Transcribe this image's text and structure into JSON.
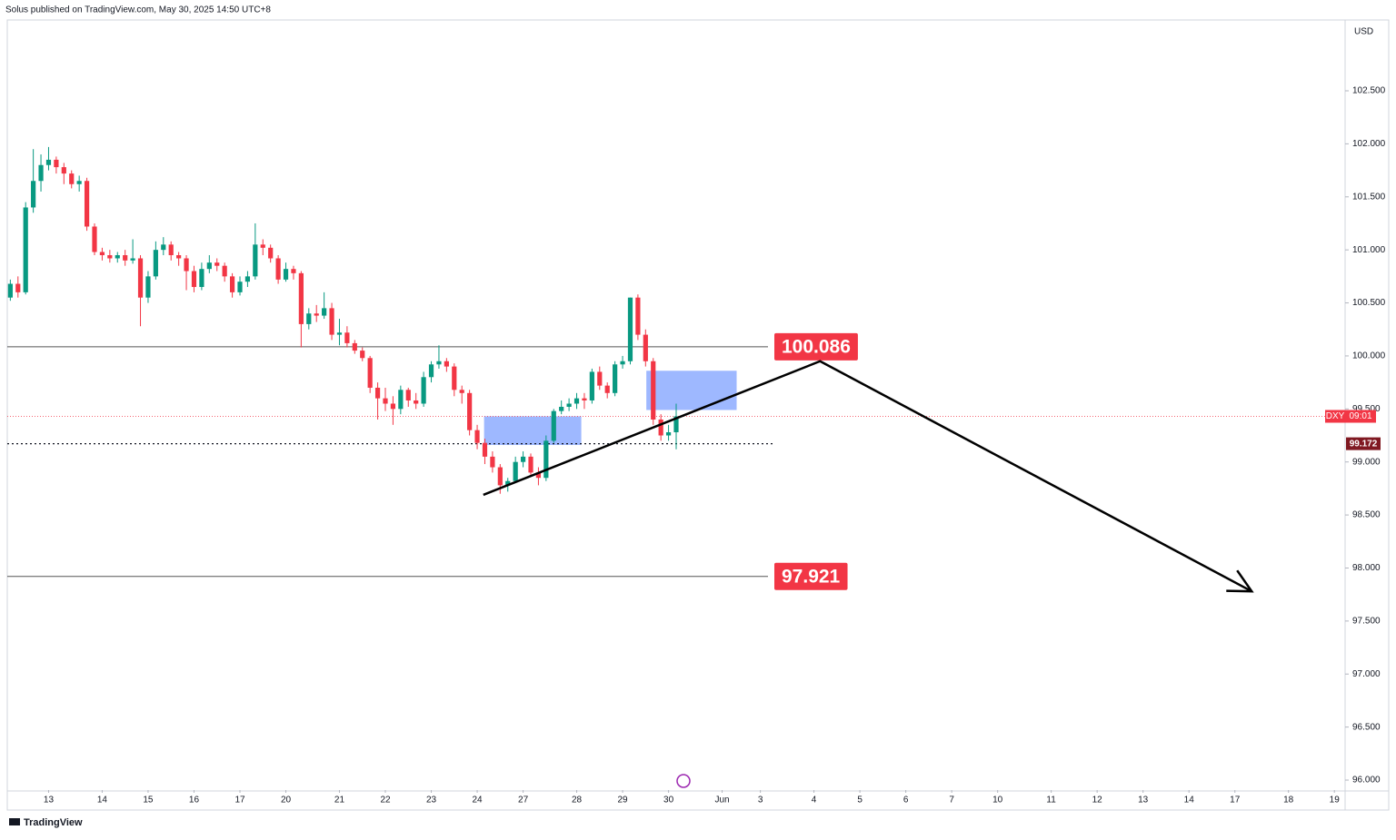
{
  "header": "Solus published on TradingView.com, May 30, 2025 14:50 UTC+8",
  "footer": "TradingView",
  "chart_data": {
    "type": "candlestick",
    "currency": "USD",
    "symbol": "DXY",
    "countdown": "09:01",
    "up_color": "#089981",
    "down_color": "#f23645",
    "candles": [
      [
        100.55,
        100.72,
        100.52,
        100.68
      ],
      [
        100.68,
        100.75,
        100.55,
        100.6
      ],
      [
        100.6,
        101.45,
        100.58,
        101.4
      ],
      [
        101.4,
        101.95,
        101.35,
        101.65
      ],
      [
        101.65,
        101.9,
        101.55,
        101.8
      ],
      [
        101.8,
        101.97,
        101.75,
        101.85
      ],
      [
        101.85,
        101.88,
        101.72,
        101.78
      ],
      [
        101.78,
        101.82,
        101.62,
        101.72
      ],
      [
        101.72,
        101.75,
        101.58,
        101.62
      ],
      [
        101.62,
        101.7,
        101.55,
        101.65
      ],
      [
        101.65,
        101.68,
        101.18,
        101.22
      ],
      [
        101.22,
        101.25,
        100.95,
        100.98
      ],
      [
        100.98,
        101.02,
        100.9,
        100.95
      ],
      [
        100.95,
        101.0,
        100.88,
        100.92
      ],
      [
        100.92,
        100.98,
        100.88,
        100.95
      ],
      [
        100.95,
        101.0,
        100.85,
        100.9
      ],
      [
        100.9,
        101.1,
        100.87,
        100.92
      ],
      [
        100.92,
        100.95,
        100.28,
        100.55
      ],
      [
        100.55,
        100.8,
        100.5,
        100.75
      ],
      [
        100.75,
        101.08,
        100.72,
        101.0
      ],
      [
        101.0,
        101.12,
        100.95,
        101.05
      ],
      [
        101.05,
        101.08,
        100.9,
        100.95
      ],
      [
        100.95,
        100.98,
        100.85,
        100.92
      ],
      [
        100.92,
        100.95,
        100.62,
        100.8
      ],
      [
        100.8,
        100.85,
        100.6,
        100.65
      ],
      [
        100.65,
        100.88,
        100.62,
        100.82
      ],
      [
        100.82,
        100.95,
        100.78,
        100.88
      ],
      [
        100.88,
        100.92,
        100.8,
        100.85
      ],
      [
        100.85,
        100.88,
        100.7,
        100.75
      ],
      [
        100.75,
        100.78,
        100.55,
        100.6
      ],
      [
        100.6,
        100.75,
        100.57,
        100.7
      ],
      [
        100.7,
        100.8,
        100.65,
        100.75
      ],
      [
        100.75,
        101.25,
        100.72,
        101.05
      ],
      [
        101.05,
        101.1,
        100.95,
        101.02
      ],
      [
        101.02,
        101.05,
        100.88,
        100.92
      ],
      [
        100.92,
        100.95,
        100.68,
        100.72
      ],
      [
        100.72,
        100.88,
        100.7,
        100.82
      ],
      [
        100.82,
        100.85,
        100.72,
        100.78
      ],
      [
        100.78,
        100.8,
        100.08,
        100.3
      ],
      [
        100.3,
        100.45,
        100.25,
        100.4
      ],
      [
        100.4,
        100.48,
        100.32,
        100.38
      ],
      [
        100.38,
        100.6,
        100.35,
        100.45
      ],
      [
        100.45,
        100.5,
        100.15,
        100.2
      ],
      [
        100.2,
        100.35,
        100.1,
        100.22
      ],
      [
        100.22,
        100.28,
        100.08,
        100.12
      ],
      [
        100.12,
        100.15,
        100.02,
        100.05
      ],
      [
        100.05,
        100.08,
        99.95,
        99.98
      ],
      [
        99.98,
        100.0,
        99.65,
        99.7
      ],
      [
        99.7,
        99.75,
        99.4,
        99.6
      ],
      [
        99.6,
        99.7,
        99.48,
        99.55
      ],
      [
        99.55,
        99.62,
        99.35,
        99.5
      ],
      [
        99.5,
        99.72,
        99.45,
        99.68
      ],
      [
        99.68,
        99.7,
        99.52,
        99.58
      ],
      [
        99.58,
        99.65,
        99.5,
        99.55
      ],
      [
        99.55,
        99.85,
        99.52,
        99.8
      ],
      [
        99.8,
        99.95,
        99.75,
        99.92
      ],
      [
        99.92,
        100.1,
        99.88,
        99.95
      ],
      [
        99.95,
        99.98,
        99.85,
        99.9
      ],
      [
        99.9,
        99.93,
        99.62,
        99.68
      ],
      [
        99.68,
        99.72,
        99.55,
        99.65
      ],
      [
        99.65,
        99.68,
        99.25,
        99.3
      ],
      [
        99.3,
        99.35,
        99.12,
        99.18
      ],
      [
        99.18,
        99.22,
        98.98,
        99.05
      ],
      [
        99.05,
        99.1,
        98.9,
        98.95
      ],
      [
        98.95,
        98.98,
        98.7,
        98.78
      ],
      [
        98.78,
        98.85,
        98.72,
        98.82
      ],
      [
        98.82,
        99.05,
        98.8,
        99.0
      ],
      [
        99.0,
        99.1,
        98.95,
        99.05
      ],
      [
        99.05,
        99.08,
        98.88,
        98.9
      ],
      [
        98.9,
        98.95,
        98.78,
        98.85
      ],
      [
        98.85,
        99.25,
        98.82,
        99.2
      ],
      [
        99.2,
        99.5,
        99.18,
        99.48
      ],
      [
        99.48,
        99.58,
        99.45,
        99.52
      ],
      [
        99.52,
        99.6,
        99.48,
        99.55
      ],
      [
        99.55,
        99.65,
        99.5,
        99.6
      ],
      [
        99.6,
        99.65,
        99.5,
        99.58
      ],
      [
        99.58,
        99.88,
        99.55,
        99.85
      ],
      [
        99.85,
        99.9,
        99.68,
        99.72
      ],
      [
        99.72,
        99.75,
        99.6,
        99.65
      ],
      [
        99.65,
        99.95,
        99.62,
        99.92
      ],
      [
        99.92,
        100.0,
        99.88,
        99.95
      ],
      [
        99.95,
        100.55,
        99.92,
        100.55
      ],
      [
        100.55,
        100.58,
        100.15,
        100.2
      ],
      [
        100.2,
        100.25,
        99.9,
        99.95
      ],
      [
        99.95,
        99.98,
        99.35,
        99.4
      ],
      [
        99.4,
        99.45,
        99.2,
        99.25
      ],
      [
        99.25,
        99.35,
        99.2,
        99.28
      ],
      [
        99.28,
        99.55,
        99.12,
        99.43
      ]
    ],
    "xlim": [
      -0.4,
      174.4
    ],
    "xticks": [
      {
        "value": 5,
        "label": "13"
      },
      {
        "value": 12,
        "label": "14"
      },
      {
        "value": 18,
        "label": "15"
      },
      {
        "value": 24,
        "label": "16"
      },
      {
        "value": 30,
        "label": "17"
      },
      {
        "value": 36,
        "label": "20"
      },
      {
        "value": 43,
        "label": "21"
      },
      {
        "value": 49,
        "label": "22"
      },
      {
        "value": 55,
        "label": "23"
      },
      {
        "value": 61,
        "label": "24"
      },
      {
        "value": 67,
        "label": "27"
      },
      {
        "value": 74,
        "label": "28"
      },
      {
        "value": 80,
        "label": "29"
      },
      {
        "value": 86,
        "label": "30"
      },
      {
        "value": 93,
        "label": "Jun"
      },
      {
        "value": 98,
        "label": "3"
      },
      {
        "value": 105,
        "label": "4"
      },
      {
        "value": 111,
        "label": "5"
      },
      {
        "value": 117,
        "label": "6"
      },
      {
        "value": 123,
        "label": "7"
      },
      {
        "value": 129,
        "label": "10"
      },
      {
        "value": 136,
        "label": "11"
      },
      {
        "value": 142,
        "label": "12"
      },
      {
        "value": 148,
        "label": "13"
      },
      {
        "value": 154,
        "label": "14"
      },
      {
        "value": 160,
        "label": "17"
      },
      {
        "value": 167,
        "label": "18"
      },
      {
        "value": 173,
        "label": "19"
      }
    ],
    "ylim": [
      95.906,
      103.168
    ],
    "yticks": [
      {
        "value": 96,
        "label": "96.000"
      },
      {
        "value": 96.5,
        "label": "96.500"
      },
      {
        "value": 97,
        "label": "97.000"
      },
      {
        "value": 97.5,
        "label": "97.500"
      },
      {
        "value": 98,
        "label": "98.000"
      },
      {
        "value": 98.5,
        "label": "98.500"
      },
      {
        "value": 99,
        "label": "99.000"
      },
      {
        "value": 99.5,
        "label": "99.500"
      },
      {
        "value": 100,
        "label": "100.000"
      },
      {
        "value": 100.5,
        "label": "100.500"
      },
      {
        "value": 101,
        "label": "101.000"
      },
      {
        "value": 101.5,
        "label": "101.500"
      },
      {
        "value": 102,
        "label": "102.000"
      },
      {
        "value": 102.5,
        "label": "102.500"
      }
    ],
    "last_price": 99.43,
    "levels": [
      100.086,
      97.921
    ],
    "marked_price": 99.172,
    "zones": [
      {
        "x": [
          61.9,
          74.6
        ],
        "y": [
          99.16,
          99.43
        ]
      },
      {
        "x": [
          83.1,
          94.9
        ],
        "y": [
          99.49,
          99.86
        ]
      }
    ],
    "trendline": {
      "x": [
        61.8,
        105.8,
        162.2
      ],
      "y": [
        98.69,
        99.95,
        97.78
      ]
    }
  }
}
